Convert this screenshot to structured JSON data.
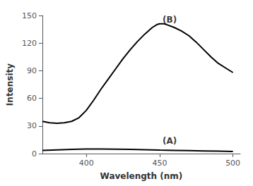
{
  "chart_data": {
    "type": "line",
    "xlabel": "Wavelength (nm)",
    "ylabel": "Intensity",
    "xlim": [
      370,
      505
    ],
    "ylim": [
      0,
      150
    ],
    "xticks": [
      400,
      450,
      500
    ],
    "yticks": [
      0,
      30,
      60,
      90,
      120,
      150
    ],
    "grid": false,
    "series": [
      {
        "color": "#000000",
        "x": [
          370,
          375,
          380,
          385,
          390,
          395,
          400,
          405,
          410,
          415,
          420,
          425,
          430,
          435,
          440,
          445,
          448,
          450,
          453,
          455,
          460,
          465,
          470,
          475,
          480,
          485,
          490,
          495,
          500
        ],
        "values": [
          35,
          33.5,
          33,
          33.5,
          35,
          39,
          47,
          58,
          70,
          81,
          92,
          103,
          113,
          122,
          130,
          137,
          140,
          141,
          141,
          140,
          137,
          133,
          128,
          121,
          113,
          105,
          98,
          93,
          88
        ]
      },
      {
        "color": "#000000",
        "x": [
          370,
          380,
          390,
          400,
          410,
          420,
          430,
          440,
          450,
          460,
          470,
          480,
          490,
          500
        ],
        "values": [
          3.5,
          4.0,
          4.5,
          5.0,
          5.0,
          4.8,
          4.5,
          4.2,
          3.8,
          3.5,
          3.2,
          2.9,
          2.6,
          2.3
        ]
      }
    ],
    "annotations": [
      {
        "text": "(B)",
        "x": 452,
        "y": 141
      },
      {
        "text": "(A)",
        "x": 452,
        "y": 9
      }
    ]
  }
}
